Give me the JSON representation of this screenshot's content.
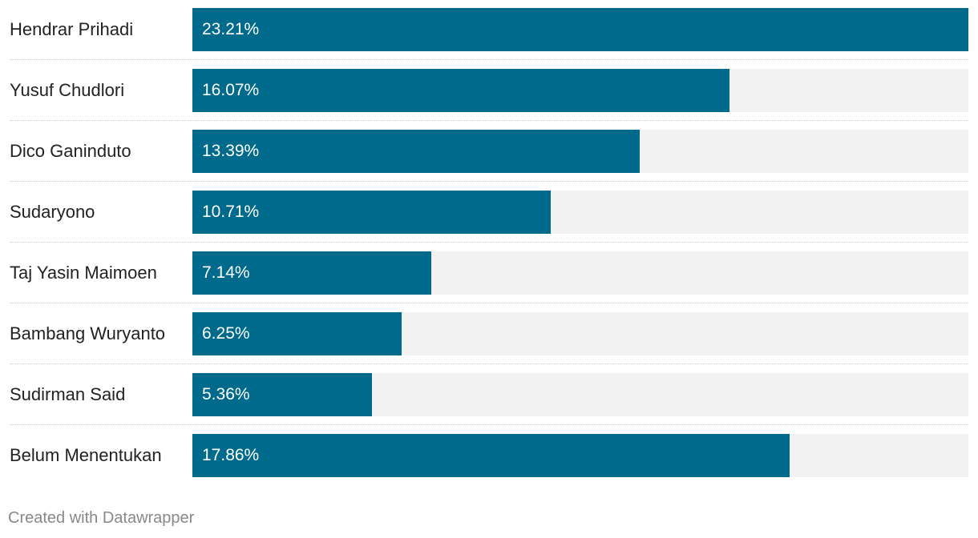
{
  "chart_data": {
    "type": "bar",
    "orientation": "horizontal",
    "categories": [
      "Hendrar Prihadi",
      "Yusuf Chudlori",
      "Dico Ganinduto",
      "Sudaryono",
      "Taj Yasin Maimoen",
      "Bambang Wuryanto",
      "Sudirman Said",
      "Belum Menentukan"
    ],
    "values": [
      23.21,
      16.07,
      13.39,
      10.71,
      7.14,
      6.25,
      5.36,
      17.86
    ],
    "value_labels": [
      "23.21%",
      "16.07%",
      "13.39%",
      "10.71%",
      "7.14%",
      "6.25%",
      "5.36%",
      "17.86%"
    ],
    "xlim": [
      0,
      23.21
    ],
    "bar_color": "#006a8c",
    "track_color": "#f2f2f2",
    "grid": false
  },
  "footer": {
    "credit": "Created with Datawrapper"
  }
}
